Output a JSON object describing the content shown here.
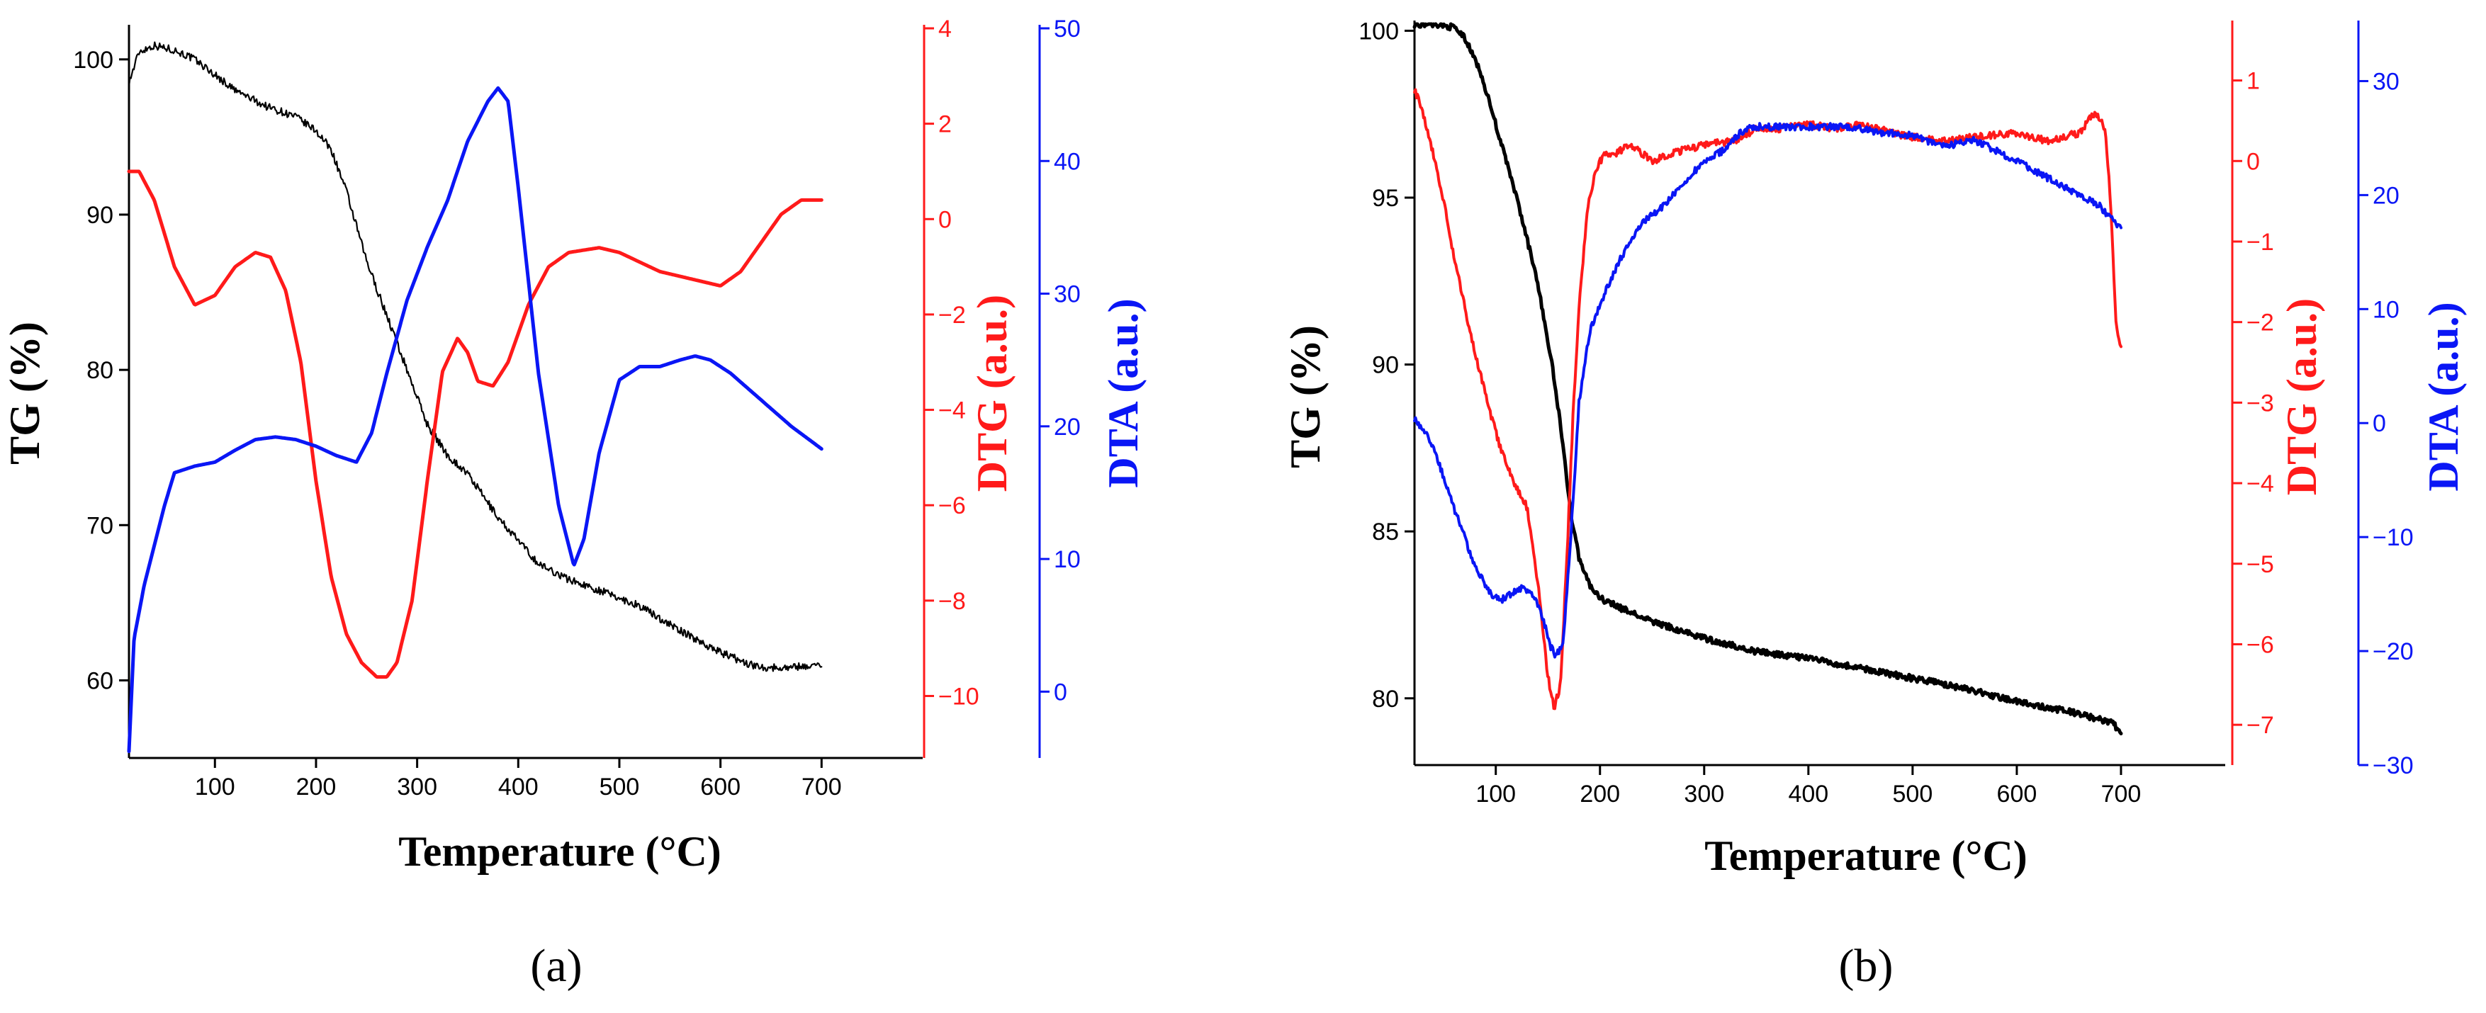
{
  "colors": {
    "tg": "#000000",
    "dtg": "#ff1a1a",
    "dta": "#0a16f5"
  },
  "chart_data": [
    {
      "type": "line",
      "panel_label": "(a)",
      "xlabel": "Temperature (°C)",
      "xlim": [
        15,
        800
      ],
      "xticks": [
        100,
        200,
        300,
        400,
        500,
        600,
        700
      ],
      "axes": {
        "tg": {
          "label": "TG (%)",
          "ylim": [
            55,
            102
          ],
          "ticks": [
            60,
            70,
            80,
            90,
            100
          ]
        },
        "dtg": {
          "label": "DTG (a.u.)",
          "ylim": [
            -11.3,
            4.0
          ],
          "ticks": [
            -10,
            -8,
            -6,
            -4,
            -2,
            0,
            2,
            4
          ]
        },
        "dta": {
          "label": "DTA (a.u.)",
          "ylim": [
            -5,
            50
          ],
          "ticks": [
            0,
            10,
            20,
            30,
            40,
            50
          ]
        }
      },
      "series": [
        {
          "name": "TG",
          "axis": "tg",
          "color_key": "tg",
          "noise": 0.25,
          "width": 2.2,
          "x": [
            15,
            25,
            40,
            60,
            80,
            100,
            120,
            150,
            180,
            200,
            215,
            230,
            250,
            270,
            290,
            310,
            330,
            350,
            380,
            420,
            450,
            480,
            520,
            560,
            600,
            630,
            650,
            680,
            700
          ],
          "y": [
            98.5,
            100.5,
            100.9,
            100.6,
            100.0,
            99.0,
            98.0,
            97.0,
            96.3,
            95.4,
            94.2,
            91.5,
            87.0,
            83.5,
            80.0,
            76.5,
            74.5,
            73.3,
            70.5,
            67.5,
            66.5,
            65.8,
            64.8,
            63.2,
            61.8,
            61.0,
            60.8,
            60.9,
            61.0
          ]
        },
        {
          "name": "DTG",
          "axis": "dtg",
          "color_key": "dtg",
          "noise": 0,
          "width": 5,
          "x": [
            15,
            25,
            40,
            60,
            80,
            100,
            120,
            140,
            155,
            170,
            185,
            200,
            215,
            230,
            245,
            260,
            270,
            280,
            295,
            310,
            325,
            340,
            350,
            360,
            375,
            390,
            410,
            430,
            450,
            480,
            500,
            520,
            540,
            560,
            580,
            600,
            620,
            640,
            660,
            680,
            700
          ],
          "y": [
            1.0,
            1.0,
            0.4,
            -1.0,
            -1.8,
            -1.6,
            -1.0,
            -0.7,
            -0.8,
            -1.5,
            -3.0,
            -5.5,
            -7.5,
            -8.7,
            -9.3,
            -9.6,
            -9.6,
            -9.3,
            -8.0,
            -5.5,
            -3.2,
            -2.5,
            -2.8,
            -3.4,
            -3.5,
            -3.0,
            -1.8,
            -1.0,
            -0.7,
            -0.6,
            -0.7,
            -0.9,
            -1.1,
            -1.2,
            -1.3,
            -1.4,
            -1.1,
            -0.5,
            0.1,
            0.4,
            0.4
          ]
        },
        {
          "name": "DTA",
          "axis": "dta",
          "color_key": "dta",
          "noise": 0,
          "width": 5,
          "x": [
            15,
            20,
            30,
            40,
            50,
            60,
            80,
            100,
            120,
            140,
            160,
            180,
            200,
            220,
            240,
            255,
            270,
            290,
            310,
            330,
            350,
            370,
            380,
            390,
            400,
            420,
            440,
            455,
            465,
            480,
            500,
            520,
            540,
            560,
            575,
            590,
            610,
            640,
            670,
            700
          ],
          "y": [
            -4.5,
            4.0,
            8.0,
            11.0,
            14.0,
            16.5,
            17.0,
            17.3,
            18.2,
            19.0,
            19.2,
            19.0,
            18.5,
            17.8,
            17.3,
            19.5,
            24.0,
            29.5,
            33.5,
            37.0,
            41.5,
            44.5,
            45.5,
            44.5,
            38.0,
            24.0,
            14.0,
            9.5,
            11.5,
            18.0,
            23.5,
            24.5,
            24.5,
            25.0,
            25.3,
            25.0,
            24.0,
            22.0,
            20.0,
            18.3
          ]
        }
      ]
    },
    {
      "type": "line",
      "panel_label": "(b)",
      "xlabel": "Temperature (°C)",
      "xlim": [
        22,
        800
      ],
      "xticks": [
        100,
        200,
        300,
        400,
        500,
        600,
        700
      ],
      "axes": {
        "tg": {
          "label": "TG (%)",
          "ylim": [
            78,
            100.2
          ],
          "ticks": [
            80,
            85,
            90,
            95,
            100
          ]
        },
        "dtg": {
          "label": "DTG (a.u.)",
          "ylim": [
            -7.5,
            1.7
          ],
          "ticks": [
            -7,
            -6,
            -5,
            -4,
            -3,
            -2,
            -1,
            0,
            1
          ]
        },
        "dta": {
          "label": "DTA (a.u.)",
          "ylim": [
            -30,
            35
          ],
          "ticks": [
            -30,
            -20,
            -10,
            0,
            10,
            20,
            30
          ]
        }
      },
      "series": [
        {
          "name": "TG",
          "axis": "tg",
          "color_key": "tg",
          "noise": 0.09,
          "width": 5,
          "x": [
            22,
            40,
            60,
            70,
            85,
            100,
            120,
            140,
            155,
            165,
            172,
            180,
            190,
            200,
            220,
            250,
            300,
            350,
            400,
            450,
            500,
            550,
            600,
            650,
            690,
            700
          ],
          "y": [
            100.2,
            100.2,
            100.1,
            99.8,
            98.8,
            97.2,
            95.0,
            92.5,
            89.8,
            87.5,
            85.5,
            84.2,
            83.4,
            83.0,
            82.7,
            82.3,
            81.8,
            81.4,
            81.2,
            80.9,
            80.6,
            80.3,
            79.9,
            79.6,
            79.3,
            79.0
          ]
        },
        {
          "name": "DTG",
          "axis": "dtg",
          "color_key": "dtg",
          "noise": 0.045,
          "width": 4,
          "x": [
            22,
            30,
            40,
            50,
            60,
            75,
            90,
            105,
            118,
            130,
            140,
            150,
            156,
            162,
            168,
            174,
            180,
            188,
            196,
            205,
            215,
            230,
            250,
            270,
            300,
            330,
            350,
            370,
            400,
            430,
            450,
            480,
            500,
            530,
            560,
            600,
            630,
            660,
            675,
            685,
            690,
            695,
            700
          ],
          "y": [
            0.9,
            0.6,
            0.1,
            -0.5,
            -1.2,
            -2.1,
            -2.9,
            -3.6,
            -4.0,
            -4.3,
            -5.2,
            -6.4,
            -6.8,
            -6.5,
            -5.0,
            -3.2,
            -1.8,
            -0.6,
            -0.1,
            0.1,
            0.1,
            0.2,
            0.0,
            0.1,
            0.2,
            0.25,
            0.4,
            0.4,
            0.45,
            0.4,
            0.45,
            0.35,
            0.3,
            0.25,
            0.3,
            0.35,
            0.25,
            0.35,
            0.6,
            0.4,
            -0.5,
            -2.0,
            -2.3
          ]
        },
        {
          "name": "DTA",
          "axis": "dta",
          "color_key": "dta",
          "noise": 0.3,
          "width": 4,
          "x": [
            22,
            40,
            60,
            80,
            95,
            105,
            115,
            125,
            135,
            145,
            152,
            158,
            165,
            172,
            180,
            190,
            205,
            220,
            240,
            260,
            280,
            300,
            320,
            335,
            345,
            360,
            400,
            440,
            470,
            500,
            520,
            530,
            560,
            600,
            640,
            680,
            700
          ],
          "y": [
            0.5,
            -2.0,
            -7.5,
            -12.5,
            -15.0,
            -15.5,
            -15.0,
            -14.5,
            -15.0,
            -17.0,
            -19.5,
            -20.5,
            -19.0,
            -10.0,
            2.0,
            8.0,
            11.5,
            14.5,
            17.5,
            19.0,
            21.0,
            23.0,
            24.0,
            25.5,
            26.0,
            26.0,
            26.0,
            26.0,
            25.5,
            25.2,
            24.6,
            24.3,
            24.8,
            23.0,
            21.0,
            19.0,
            17.0
          ]
        }
      ]
    }
  ]
}
